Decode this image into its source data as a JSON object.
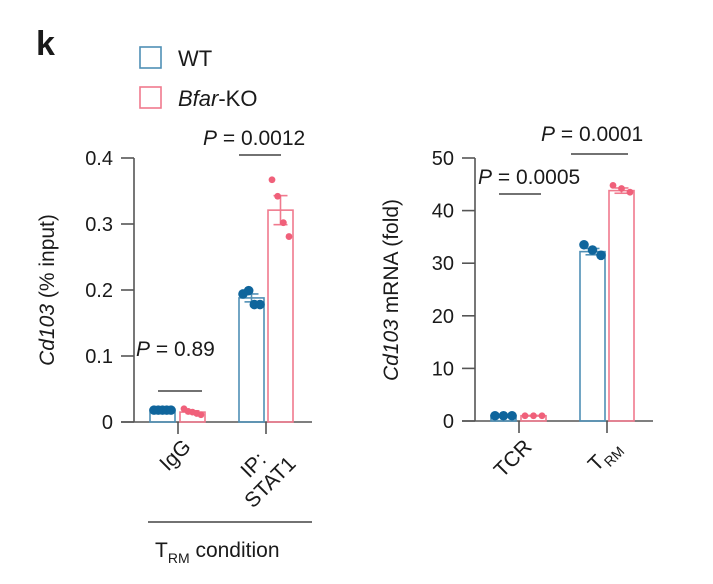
{
  "panel_label": "k",
  "legend": [
    {
      "label_pre": "",
      "label_italic": "",
      "label": "WT",
      "color": "#4f8fb5"
    },
    {
      "label_italic": "Bfar",
      "label": "-KO",
      "color": "#f07a8e"
    }
  ],
  "colors": {
    "wt_bar": "#4f8fb5",
    "wt_dot": "#0f659c",
    "ko_bar": "#f07a8e",
    "ko_dot": "#f0607a",
    "axis": "#555555"
  },
  "chart_data": [
    {
      "type": "bar",
      "title": "",
      "ylabel_italic": "Cd103",
      "ylabel": " (% input)",
      "xlabel_main": "T",
      "xlabel_sub": "RM",
      "xlabel_rest": " condition",
      "ylim": [
        0,
        0.4
      ],
      "yticks": [
        "0",
        "0.1",
        "0.2",
        "0.3",
        "0.4"
      ],
      "ytick_values": [
        0,
        0.1,
        0.2,
        0.3,
        0.4
      ],
      "categories": [
        "IgG",
        "IP: STAT1"
      ],
      "category_lines": [
        [
          "IgG"
        ],
        [
          "IP:",
          "STAT1"
        ]
      ],
      "series": [
        {
          "name": "WT",
          "values": [
            0.018,
            0.188
          ],
          "sem": [
            0.001,
            0.006
          ],
          "points": [
            [
              0.018,
              0.018,
              0.018,
              0.018,
              0.018
            ],
            [
              0.194,
              0.199,
              0.178,
              0.178
            ]
          ]
        },
        {
          "name": "Bfar-KO",
          "values": [
            0.015,
            0.321
          ],
          "sem": [
            0.002,
            0.022
          ],
          "points": [
            [
              0.02,
              0.016,
              0.015,
              0.013,
              0.011
            ],
            [
              0.367,
              0.342,
              0.302,
              0.281
            ]
          ]
        }
      ],
      "annotations": [
        {
          "text_italic": "P",
          "text": " = 0.89",
          "category": 0
        },
        {
          "text_italic": "P",
          "text": " = 0.0012",
          "category": 1
        }
      ]
    },
    {
      "type": "bar",
      "title": "",
      "ylabel_italic": "Cd103",
      "ylabel": " mRNA (fold)",
      "ylim": [
        0,
        50
      ],
      "yticks": [
        "0",
        "10",
        "20",
        "30",
        "40",
        "50"
      ],
      "ytick_values": [
        0,
        10,
        20,
        30,
        40,
        50
      ],
      "categories": [
        "TCR",
        "TRM"
      ],
      "category_lines": [
        [
          "TCR"
        ],
        [
          "T",
          "RM"
        ]
      ],
      "series": [
        {
          "name": "WT",
          "values": [
            1.0,
            32.2
          ],
          "sem": [
            0.05,
            0.6
          ],
          "points": [
            [
              1.0,
              1.0,
              1.0
            ],
            [
              33.5,
              32.5,
              31.5
            ]
          ]
        },
        {
          "name": "Bfar-KO",
          "values": [
            1.0,
            43.8
          ],
          "sem": [
            0.05,
            0.5
          ],
          "points": [
            [
              1.0,
              1.0,
              1.0
            ],
            [
              44.8,
              44.2,
              43.5
            ]
          ]
        }
      ],
      "annotations": [
        {
          "text_italic": "P",
          "text": " = 0.0005",
          "category": 0
        },
        {
          "text_italic": "P",
          "text": " = 0.0001",
          "category": 1
        }
      ]
    }
  ]
}
